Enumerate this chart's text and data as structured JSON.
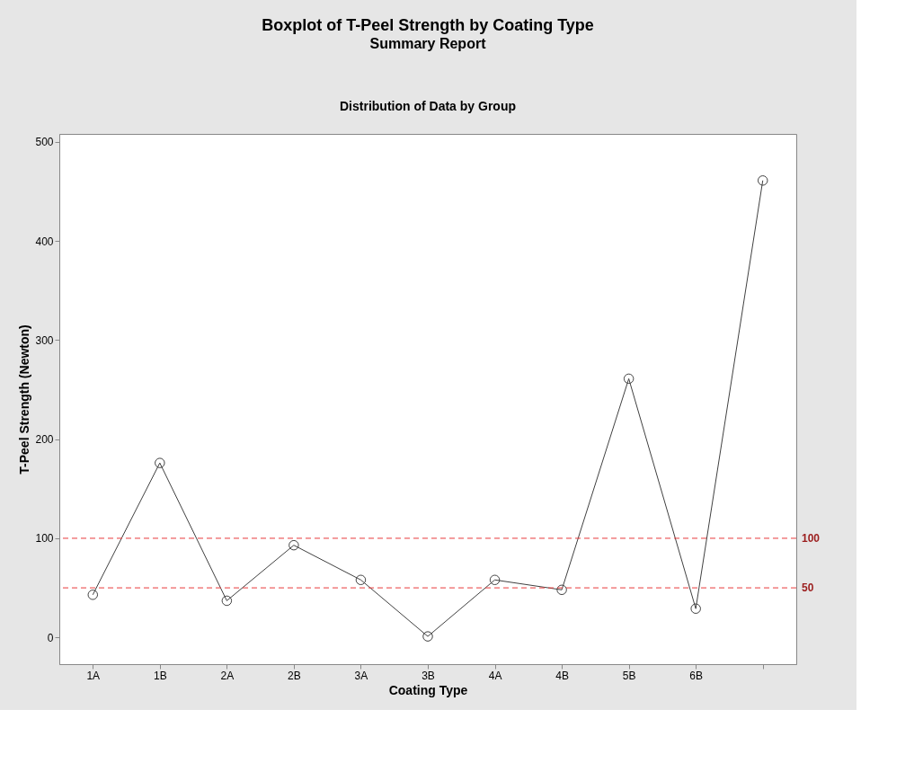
{
  "chart_data": {
    "type": "line",
    "title": "Boxplot of T-Peel Strength by Coating Type",
    "subtitle": "Summary Report",
    "annotations": [
      "Distribution of Data by Group"
    ],
    "xlabel": "Coating Type",
    "ylabel": "T-Peel Strength (Newton)",
    "categories": [
      "1A",
      "1B",
      "2A",
      "2B",
      "3A",
      "3B",
      "4A",
      "4B",
      "5B",
      "6B",
      null
    ],
    "series": [
      {
        "color": "#404040",
        "values": [
          43,
          176,
          37,
          93,
          58,
          1,
          58,
          48,
          261,
          29,
          461
        ]
      }
    ],
    "ylim": [
      -27,
      508
    ],
    "yticks": [
      0,
      100,
      200,
      300,
      400,
      500
    ],
    "ref_lines": [
      {
        "axis": "y",
        "value": 100,
        "label": "100",
        "color": "#e8393b",
        "line_style": "dashed"
      },
      {
        "axis": "y",
        "value": 50,
        "label": "50",
        "color": "#e8393b",
        "line_style": "dashed"
      }
    ],
    "marker": "circle",
    "line_style": "solid",
    "grid": false
  }
}
